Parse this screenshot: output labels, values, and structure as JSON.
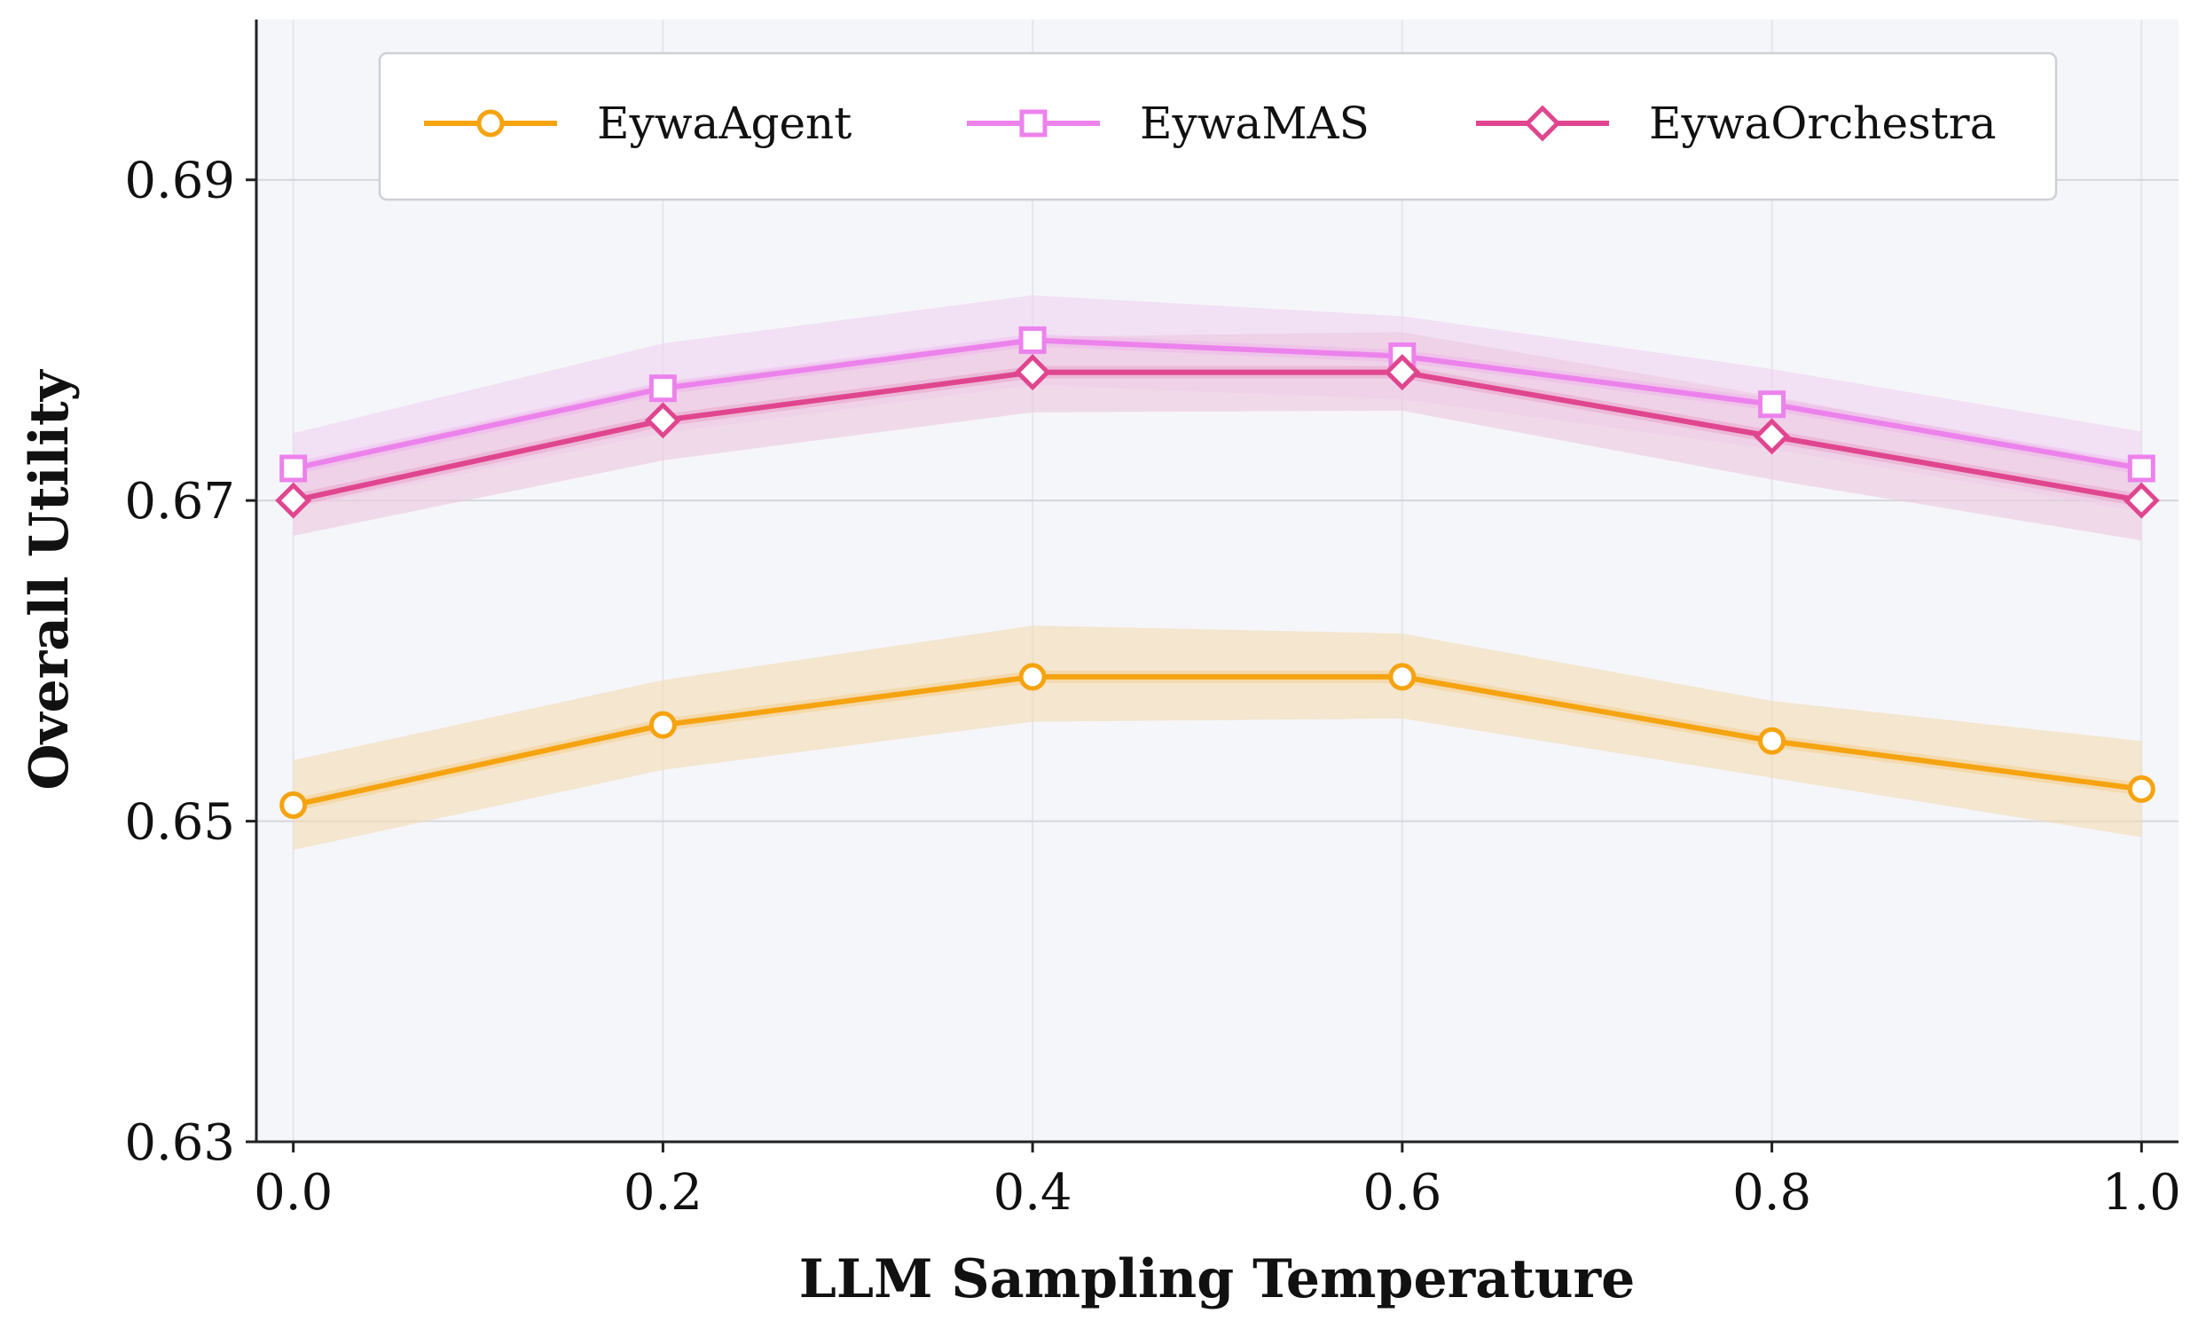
{
  "chart_data": {
    "type": "line",
    "title": "",
    "xlabel": "LLM Sampling Temperature",
    "ylabel": "Overall Utility",
    "x": [
      0.0,
      0.2,
      0.4,
      0.6,
      0.8,
      1.0
    ],
    "x_tick_labels": [
      "0.0",
      "0.2",
      "0.4",
      "0.6",
      "0.8",
      "1.0"
    ],
    "xlim": [
      -0.02,
      1.02
    ],
    "ylim": [
      0.63,
      0.7
    ],
    "y_ticks": [
      0.63,
      0.65,
      0.67,
      0.69
    ],
    "y_tick_labels": [
      "0.63",
      "0.65",
      "0.67",
      "0.69"
    ],
    "grid": true,
    "legend_position": "top-center",
    "series": [
      {
        "name": "EywaAgent",
        "color": "#f5a30f",
        "band_color": "#f3dcb2",
        "marker": "circle",
        "values": [
          0.651,
          0.656,
          0.659,
          0.659,
          0.655,
          0.652
        ],
        "band_low": [
          0.6482,
          0.6532,
          0.6562,
          0.6564,
          0.6527,
          0.649
        ],
        "band_high": [
          0.6538,
          0.6588,
          0.6622,
          0.6617,
          0.6575,
          0.655
        ]
      },
      {
        "name": "EywaMAS",
        "color": "#ec82ec",
        "band_color": "#f0d2f0",
        "marker": "square",
        "values": [
          0.672,
          0.677,
          0.68,
          0.679,
          0.676,
          0.672
        ],
        "band_low": [
          0.6695,
          0.6742,
          0.6772,
          0.6763,
          0.6732,
          0.6693
        ],
        "band_high": [
          0.6742,
          0.6798,
          0.6828,
          0.6815,
          0.6782,
          0.6743
        ]
      },
      {
        "name": "EywaOrchestra",
        "color": "#e0468f",
        "band_color": "#ecc8df",
        "marker": "diamond",
        "values": [
          0.67,
          0.675,
          0.678,
          0.678,
          0.674,
          0.67
        ],
        "band_low": [
          0.6678,
          0.6725,
          0.6755,
          0.6756,
          0.6713,
          0.6675
        ],
        "band_high": [
          0.6722,
          0.6773,
          0.6802,
          0.6805,
          0.6765,
          0.6722
        ]
      }
    ]
  }
}
